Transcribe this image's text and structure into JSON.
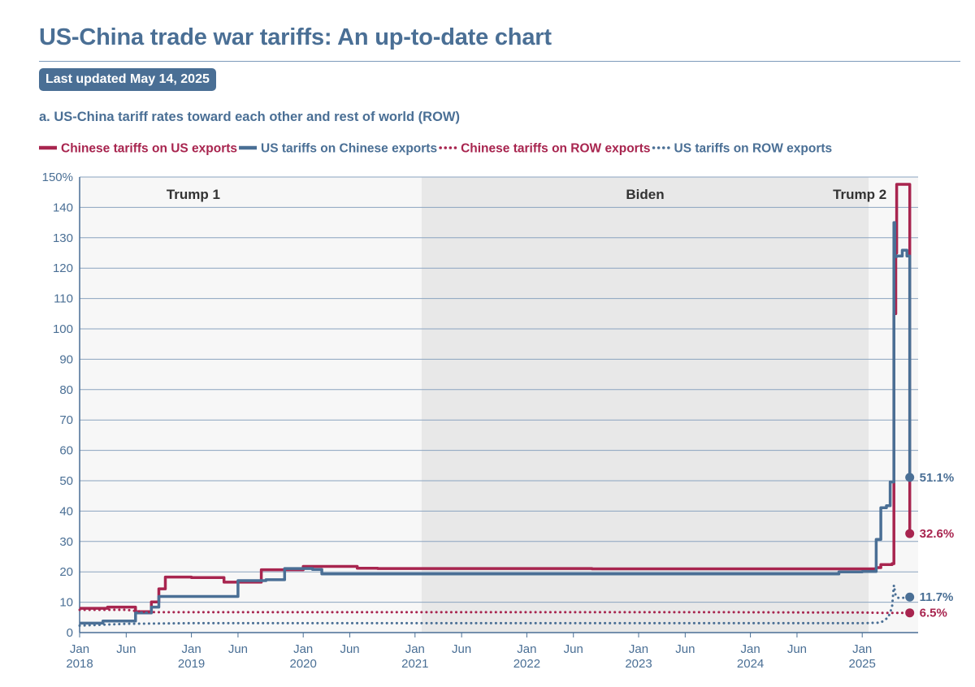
{
  "page": {
    "title": "US-China trade war tariffs: An up-to-date chart",
    "updated": "Last updated May 14, 2025",
    "subtitle": "a. US-China tariff rates toward each other and rest of world (ROW)"
  },
  "colors": {
    "chinese": "#a8254f",
    "us": "#4a6f95",
    "trump_bg": "#f7f7f7",
    "biden_bg": "#e8e8e8",
    "grid": "#8aa3bf",
    "axis_text": "#4a6f95"
  },
  "chart_data": {
    "type": "line",
    "title": "a. US-China tariff rates toward each other and rest of world (ROW)",
    "xlabel": "",
    "ylabel": "",
    "x_unit": "months since Jan 2018",
    "xlim": [
      0,
      90
    ],
    "ylim": [
      0,
      150
    ],
    "yticks": [
      0,
      10,
      20,
      30,
      40,
      50,
      60,
      70,
      80,
      90,
      100,
      110,
      120,
      130,
      140,
      150
    ],
    "ytick_labels": [
      "0",
      "10",
      "20",
      "30",
      "40",
      "50",
      "60",
      "70",
      "80",
      "90",
      "100",
      "110",
      "120",
      "130",
      "140",
      "150%"
    ],
    "xticks": [
      {
        "x": 0,
        "label": "Jan",
        "year": "2018"
      },
      {
        "x": 5,
        "label": "Jun",
        "year": ""
      },
      {
        "x": 12,
        "label": "Jan",
        "year": "2019"
      },
      {
        "x": 17,
        "label": "Jun",
        "year": ""
      },
      {
        "x": 24,
        "label": "Jan",
        "year": "2020"
      },
      {
        "x": 29,
        "label": "Jun",
        "year": ""
      },
      {
        "x": 36,
        "label": "Jan",
        "year": "2021"
      },
      {
        "x": 41,
        "label": "Jun",
        "year": ""
      },
      {
        "x": 48,
        "label": "Jan",
        "year": "2022"
      },
      {
        "x": 53,
        "label": "Jun",
        "year": ""
      },
      {
        "x": 60,
        "label": "Jan",
        "year": "2023"
      },
      {
        "x": 65,
        "label": "Jun",
        "year": ""
      },
      {
        "x": 72,
        "label": "Jan",
        "year": "2024"
      },
      {
        "x": 77,
        "label": "Jun",
        "year": ""
      },
      {
        "x": 84,
        "label": "Jan",
        "year": "2025"
      }
    ],
    "periods": [
      {
        "name": "Trump 1",
        "start": 0,
        "end": 36.7
      },
      {
        "name": "Biden",
        "start": 36.7,
        "end": 84.7
      },
      {
        "name": "Trump 2",
        "start": 84.7,
        "end": 90
      }
    ],
    "legend": [
      "Chinese tariffs on US exports",
      "US tariffs on Chinese exports",
      "Chinese tariffs on ROW exports",
      "US tariffs on ROW exports"
    ],
    "series": [
      {
        "name": "Chinese tariffs on US exports",
        "style": "solid",
        "color": "#a8254f",
        "x": [
          0,
          3,
          6,
          7.7,
          8.5,
          9.2,
          12,
          15.5,
          17,
          19.5,
          20,
          24,
          26,
          29.8,
          32,
          36,
          45,
          50,
          55,
          60,
          65,
          70,
          75,
          80,
          84,
          85.5,
          86,
          87.2,
          87.4,
          87.6,
          87.7,
          88.2,
          88.8,
          89.1
        ],
        "y": [
          8,
          8.4,
          6.9,
          10.1,
          14.4,
          18.3,
          18.1,
          16.6,
          16.6,
          20.7,
          20.7,
          21.8,
          21.8,
          21.2,
          21.1,
          21.1,
          21.1,
          21.1,
          21,
          21,
          21,
          21,
          21,
          21,
          21,
          21.4,
          22.4,
          22.7,
          105,
          125,
          147.6,
          147.6,
          147.6,
          32.6
        ]
      },
      {
        "name": "US tariffs on Chinese exports",
        "style": "solid",
        "color": "#4a6f95",
        "x": [
          0,
          2.5,
          6,
          7.7,
          8.5,
          9.2,
          12,
          15,
          17,
          20,
          22,
          25,
          26,
          30,
          36,
          45,
          50,
          55,
          60,
          65,
          70,
          75,
          80,
          81.5,
          84,
          85.5,
          86,
          86.6,
          87,
          87.4,
          87.5,
          87.7,
          88.3,
          88.8,
          89.1
        ],
        "y": [
          3.1,
          3.8,
          6.5,
          8.4,
          11.9,
          11.9,
          11.9,
          11.9,
          17.1,
          17.4,
          21.1,
          20.8,
          19.3,
          19.3,
          19.3,
          19.3,
          19.3,
          19.3,
          19.3,
          19.3,
          19.3,
          19.3,
          19.3,
          20,
          20.1,
          30.7,
          41.1,
          41.8,
          49.6,
          135,
          123.8,
          124,
          125.9,
          124,
          51.1
        ]
      },
      {
        "name": "Chinese tariffs on ROW exports",
        "style": "dotted",
        "color": "#a8254f",
        "x": [
          0,
          5,
          7,
          8.5,
          12,
          20,
          30,
          40,
          50,
          60,
          70,
          80,
          84,
          86,
          87,
          88,
          89.1
        ],
        "y": [
          7.5,
          7.5,
          6.8,
          6.7,
          6.7,
          6.7,
          6.7,
          6.7,
          6.7,
          6.7,
          6.7,
          6.6,
          6.6,
          6.5,
          6.5,
          6.5,
          6.5
        ]
      },
      {
        "name": "US tariffs on ROW exports",
        "style": "dotted",
        "color": "#4a6f95",
        "x": [
          0,
          5,
          12,
          24,
          36,
          48,
          60,
          72,
          84,
          86,
          86.8,
          87.2,
          87.4,
          87.6,
          87.8,
          88.1,
          88.5,
          89.1
        ],
        "y": [
          2.3,
          2.9,
          3.1,
          3.1,
          3.1,
          3.1,
          3.1,
          3.1,
          3.1,
          3.3,
          5,
          8.4,
          15.6,
          12,
          11.5,
          11.3,
          11.5,
          11.7
        ]
      }
    ],
    "end_labels": [
      {
        "series": "US tariffs on Chinese exports",
        "x": 89.1,
        "y": 51.1,
        "label": "51.1%",
        "color": "#4a6f95"
      },
      {
        "series": "Chinese tariffs on US exports",
        "x": 89.1,
        "y": 32.6,
        "label": "32.6%",
        "color": "#a8254f"
      },
      {
        "series": "US tariffs on ROW exports",
        "x": 89.1,
        "y": 11.7,
        "label": "11.7%",
        "color": "#4a6f95"
      },
      {
        "series": "Chinese tariffs on ROW exports",
        "x": 89.1,
        "y": 6.5,
        "label": "6.5%",
        "color": "#a8254f"
      }
    ]
  }
}
